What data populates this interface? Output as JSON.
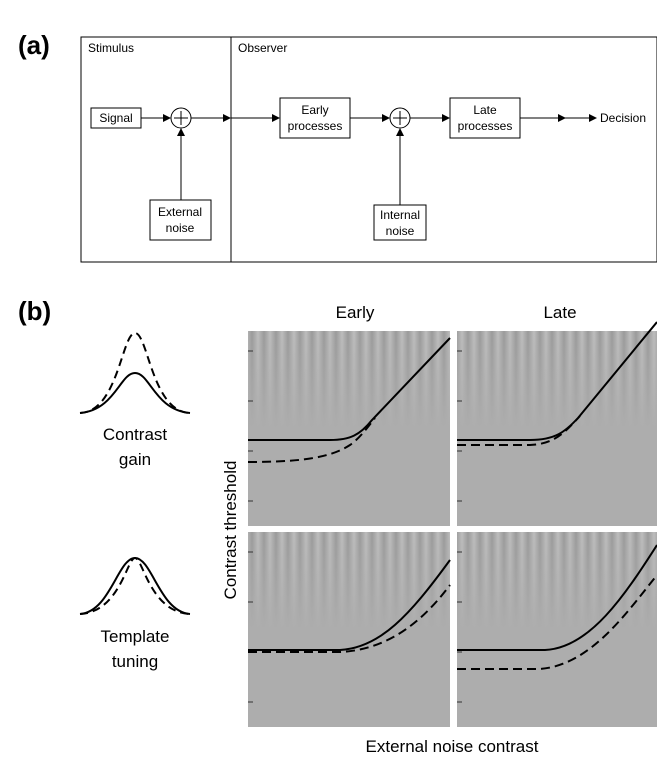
{
  "panel_a": {
    "label": "(a)",
    "stimulus_title": "Stimulus",
    "observer_title": "Observer",
    "nodes": {
      "signal": [
        "Signal"
      ],
      "external_noise": [
        "External",
        "noise"
      ],
      "early": [
        "Early",
        "processes"
      ],
      "internal_noise": [
        "Internal",
        "noise"
      ],
      "late": [
        "Late",
        "processes"
      ],
      "decision": [
        "Decision"
      ]
    }
  },
  "panel_b": {
    "label": "(b)",
    "columns": [
      "Early",
      "Late"
    ],
    "rows": [
      [
        "Contrast",
        "gain"
      ],
      [
        "Template",
        "tuning"
      ]
    ],
    "y_label": "Contrast threshold",
    "x_label": "External noise contrast"
  }
}
